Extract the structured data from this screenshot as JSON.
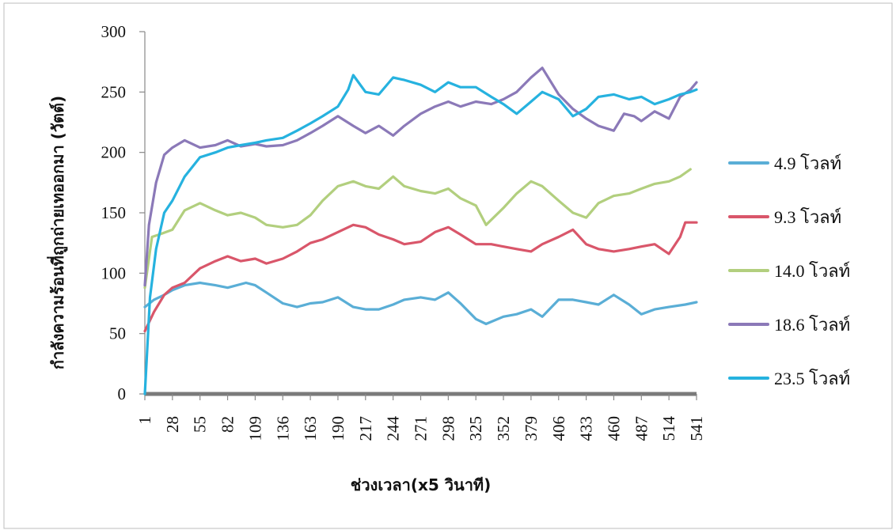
{
  "chart_data": {
    "type": "line",
    "title": "",
    "xlabel": "ช่วงเวลา(x5 วินาที)",
    "ylabel": "กำลังความร้อนที่ถูกถ่ายเทออกมา (วัตต์)",
    "x_ticks": [
      1,
      28,
      55,
      82,
      109,
      136,
      163,
      190,
      217,
      244,
      271,
      298,
      325,
      352,
      379,
      406,
      433,
      460,
      487,
      514,
      541
    ],
    "y_ticks": [
      0,
      50,
      100,
      150,
      200,
      250,
      300
    ],
    "xlim": [
      1,
      541
    ],
    "ylim": [
      0,
      300
    ],
    "grid": false,
    "legend_position": "right",
    "series": [
      {
        "name": "4.9 โวลท์",
        "color": "#5aaed6",
        "points": [
          [
            1,
            72
          ],
          [
            10,
            78
          ],
          [
            20,
            82
          ],
          [
            28,
            86
          ],
          [
            40,
            90
          ],
          [
            55,
            92
          ],
          [
            70,
            90
          ],
          [
            82,
            88
          ],
          [
            100,
            92
          ],
          [
            109,
            90
          ],
          [
            120,
            84
          ],
          [
            136,
            75
          ],
          [
            150,
            72
          ],
          [
            163,
            75
          ],
          [
            175,
            76
          ],
          [
            190,
            80
          ],
          [
            205,
            72
          ],
          [
            217,
            70
          ],
          [
            230,
            70
          ],
          [
            244,
            74
          ],
          [
            255,
            78
          ],
          [
            271,
            80
          ],
          [
            285,
            78
          ],
          [
            298,
            84
          ],
          [
            310,
            75
          ],
          [
            325,
            62
          ],
          [
            335,
            58
          ],
          [
            352,
            64
          ],
          [
            365,
            66
          ],
          [
            379,
            70
          ],
          [
            390,
            64
          ],
          [
            406,
            78
          ],
          [
            420,
            78
          ],
          [
            433,
            76
          ],
          [
            445,
            74
          ],
          [
            460,
            82
          ],
          [
            475,
            74
          ],
          [
            487,
            66
          ],
          [
            500,
            70
          ],
          [
            514,
            72
          ],
          [
            530,
            74
          ],
          [
            541,
            76
          ]
        ]
      },
      {
        "name": "9.3 โวลท์",
        "color": "#d9566a",
        "points": [
          [
            1,
            52
          ],
          [
            10,
            68
          ],
          [
            20,
            82
          ],
          [
            28,
            88
          ],
          [
            40,
            92
          ],
          [
            55,
            104
          ],
          [
            70,
            110
          ],
          [
            82,
            114
          ],
          [
            95,
            110
          ],
          [
            109,
            112
          ],
          [
            120,
            108
          ],
          [
            136,
            112
          ],
          [
            150,
            118
          ],
          [
            163,
            125
          ],
          [
            175,
            128
          ],
          [
            190,
            134
          ],
          [
            205,
            140
          ],
          [
            217,
            138
          ],
          [
            230,
            132
          ],
          [
            244,
            128
          ],
          [
            255,
            124
          ],
          [
            271,
            126
          ],
          [
            285,
            134
          ],
          [
            298,
            138
          ],
          [
            310,
            132
          ],
          [
            325,
            124
          ],
          [
            340,
            124
          ],
          [
            352,
            122
          ],
          [
            365,
            120
          ],
          [
            379,
            118
          ],
          [
            390,
            124
          ],
          [
            406,
            130
          ],
          [
            420,
            136
          ],
          [
            433,
            124
          ],
          [
            445,
            120
          ],
          [
            460,
            118
          ],
          [
            475,
            120
          ],
          [
            487,
            122
          ],
          [
            500,
            124
          ],
          [
            514,
            116
          ],
          [
            525,
            130
          ],
          [
            530,
            142
          ],
          [
            541,
            142
          ]
        ]
      },
      {
        "name": "14.0 โวลท์",
        "color": "#b2cf7e",
        "points": [
          [
            1,
            88
          ],
          [
            8,
            130
          ],
          [
            15,
            132
          ],
          [
            28,
            136
          ],
          [
            40,
            152
          ],
          [
            55,
            158
          ],
          [
            70,
            152
          ],
          [
            82,
            148
          ],
          [
            95,
            150
          ],
          [
            109,
            146
          ],
          [
            120,
            140
          ],
          [
            136,
            138
          ],
          [
            150,
            140
          ],
          [
            163,
            148
          ],
          [
            175,
            160
          ],
          [
            190,
            172
          ],
          [
            205,
            176
          ],
          [
            217,
            172
          ],
          [
            230,
            170
          ],
          [
            244,
            180
          ],
          [
            255,
            172
          ],
          [
            271,
            168
          ],
          [
            285,
            166
          ],
          [
            298,
            170
          ],
          [
            310,
            162
          ],
          [
            325,
            156
          ],
          [
            335,
            140
          ],
          [
            352,
            154
          ],
          [
            365,
            166
          ],
          [
            379,
            176
          ],
          [
            390,
            172
          ],
          [
            406,
            160
          ],
          [
            420,
            150
          ],
          [
            433,
            146
          ],
          [
            445,
            158
          ],
          [
            460,
            164
          ],
          [
            475,
            166
          ],
          [
            487,
            170
          ],
          [
            500,
            174
          ],
          [
            514,
            176
          ],
          [
            525,
            180
          ],
          [
            535,
            186
          ]
        ]
      },
      {
        "name": "18.6 โวลท์",
        "color": "#8b79b8",
        "points": [
          [
            1,
            90
          ],
          [
            5,
            140
          ],
          [
            12,
            175
          ],
          [
            20,
            198
          ],
          [
            28,
            204
          ],
          [
            40,
            210
          ],
          [
            55,
            204
          ],
          [
            70,
            206
          ],
          [
            82,
            210
          ],
          [
            95,
            205
          ],
          [
            109,
            207
          ],
          [
            120,
            205
          ],
          [
            136,
            206
          ],
          [
            150,
            210
          ],
          [
            163,
            216
          ],
          [
            175,
            222
          ],
          [
            190,
            230
          ],
          [
            205,
            222
          ],
          [
            217,
            216
          ],
          [
            230,
            222
          ],
          [
            244,
            214
          ],
          [
            255,
            222
          ],
          [
            271,
            232
          ],
          [
            285,
            238
          ],
          [
            298,
            242
          ],
          [
            310,
            238
          ],
          [
            325,
            242
          ],
          [
            340,
            240
          ],
          [
            352,
            244
          ],
          [
            365,
            250
          ],
          [
            379,
            262
          ],
          [
            390,
            270
          ],
          [
            406,
            248
          ],
          [
            420,
            236
          ],
          [
            433,
            228
          ],
          [
            445,
            222
          ],
          [
            460,
            218
          ],
          [
            470,
            232
          ],
          [
            480,
            230
          ],
          [
            487,
            226
          ],
          [
            500,
            234
          ],
          [
            514,
            228
          ],
          [
            525,
            246
          ],
          [
            535,
            252
          ],
          [
            541,
            258
          ]
        ]
      },
      {
        "name": "23.5 โวลท์",
        "color": "#26b2df",
        "points": [
          [
            1,
            0
          ],
          [
            6,
            80
          ],
          [
            12,
            120
          ],
          [
            20,
            150
          ],
          [
            28,
            160
          ],
          [
            40,
            180
          ],
          [
            55,
            196
          ],
          [
            70,
            200
          ],
          [
            82,
            204
          ],
          [
            95,
            206
          ],
          [
            109,
            208
          ],
          [
            120,
            210
          ],
          [
            136,
            212
          ],
          [
            150,
            218
          ],
          [
            163,
            224
          ],
          [
            175,
            230
          ],
          [
            190,
            238
          ],
          [
            200,
            252
          ],
          [
            205,
            264
          ],
          [
            217,
            250
          ],
          [
            230,
            248
          ],
          [
            244,
            262
          ],
          [
            255,
            260
          ],
          [
            271,
            256
          ],
          [
            285,
            250
          ],
          [
            298,
            258
          ],
          [
            310,
            254
          ],
          [
            325,
            254
          ],
          [
            340,
            246
          ],
          [
            352,
            240
          ],
          [
            365,
            232
          ],
          [
            379,
            242
          ],
          [
            390,
            250
          ],
          [
            406,
            244
          ],
          [
            420,
            230
          ],
          [
            433,
            236
          ],
          [
            445,
            246
          ],
          [
            460,
            248
          ],
          [
            475,
            244
          ],
          [
            487,
            246
          ],
          [
            500,
            240
          ],
          [
            514,
            244
          ],
          [
            525,
            248
          ],
          [
            535,
            250
          ],
          [
            541,
            252
          ]
        ]
      }
    ]
  }
}
